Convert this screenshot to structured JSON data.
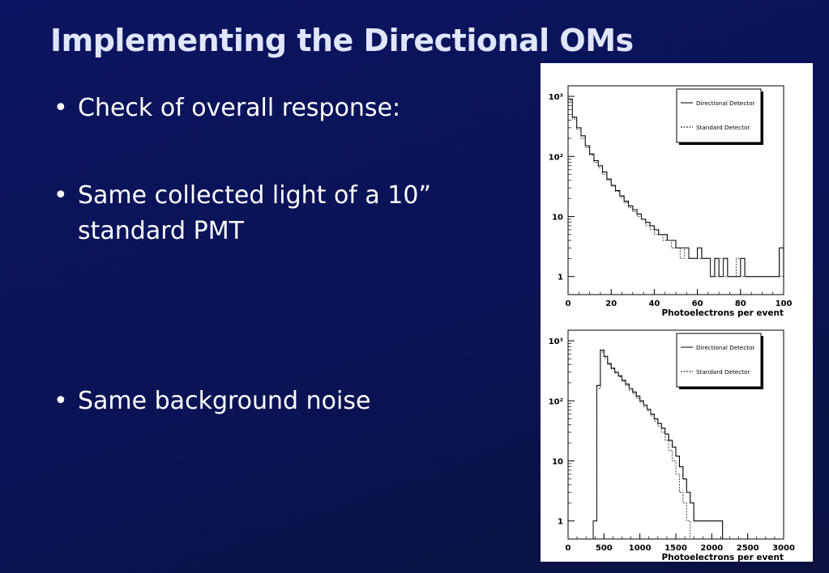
{
  "slide": {
    "title": "Implementing the Directional OMs",
    "bullets": [
      "Check of overall response:",
      "Same collected light of a 10” standard PMT",
      "Same background noise"
    ]
  },
  "chart_data": [
    {
      "type": "line",
      "xlabel": "Photoelectrons per event",
      "xlim": [
        0,
        100
      ],
      "ylim": [
        0.5,
        1500
      ],
      "yscale": "log",
      "x_ticks": [
        "0",
        "20",
        "40",
        "60",
        "80",
        "100"
      ],
      "y_ticks": [
        "1",
        "10",
        "10²",
        "10³"
      ],
      "legend": [
        "Directional Detector",
        "Standard Detector"
      ],
      "legend_position": "top-right",
      "series": [
        {
          "name": "Directional Detector",
          "style": "solid",
          "x": [
            0,
            2,
            4,
            6,
            8,
            10,
            12,
            14,
            16,
            18,
            20,
            22,
            24,
            26,
            28,
            30,
            32,
            34,
            36,
            38,
            40,
            42,
            44,
            46,
            48,
            50,
            52,
            54,
            56,
            58,
            60,
            62,
            64,
            66,
            68,
            70,
            72,
            74,
            76,
            78,
            80,
            82,
            84,
            86,
            88,
            90,
            92,
            94,
            96,
            98
          ],
          "y": [
            900,
            450,
            300,
            220,
            150,
            110,
            85,
            70,
            55,
            42,
            33,
            27,
            22,
            18,
            15,
            13,
            11,
            9,
            8,
            7,
            6,
            5,
            5,
            4,
            4,
            3,
            3,
            3,
            2,
            2,
            3,
            2,
            2,
            1,
            2,
            1,
            2,
            1,
            1,
            1,
            2,
            1,
            1,
            1,
            1,
            1,
            1,
            1,
            1,
            3
          ]
        },
        {
          "name": "Standard Detector",
          "style": "dashed",
          "x": [
            0,
            2,
            4,
            6,
            8,
            10,
            12,
            14,
            16,
            18,
            20,
            22,
            24,
            26,
            28,
            30,
            32,
            34,
            36,
            38,
            40,
            42,
            44,
            46,
            48,
            50,
            52,
            54,
            56,
            58,
            60,
            62,
            64,
            66,
            68,
            70,
            72,
            74,
            76,
            78,
            80,
            82,
            84,
            86,
            88,
            90,
            92,
            94,
            96,
            98
          ],
          "y": [
            850,
            420,
            280,
            200,
            140,
            105,
            80,
            65,
            50,
            40,
            32,
            26,
            21,
            17,
            14,
            12,
            10,
            9,
            7,
            6,
            5,
            5,
            4,
            4,
            3,
            3,
            2,
            3,
            2,
            2,
            2,
            2,
            2,
            1,
            1,
            2,
            1,
            1,
            1,
            2,
            1,
            1,
            1,
            1,
            1,
            1,
            1,
            1,
            1,
            1
          ]
        }
      ]
    },
    {
      "type": "line",
      "xlabel": "Photoelectrons per event",
      "xlim": [
        0,
        3000
      ],
      "ylim": [
        0.5,
        1500
      ],
      "yscale": "log",
      "x_ticks": [
        "0",
        "500",
        "1000",
        "1500",
        "2000",
        "2500",
        "3000"
      ],
      "y_ticks": [
        "1",
        "10",
        "10²",
        "10³"
      ],
      "legend": [
        "Directional Detector",
        "Standard Detector"
      ],
      "legend_position": "top-right",
      "series": [
        {
          "name": "Directional Detector",
          "style": "solid",
          "x": [
            350,
            400,
            450,
            500,
            550,
            600,
            650,
            700,
            750,
            800,
            850,
            900,
            950,
            1000,
            1050,
            1100,
            1150,
            1200,
            1250,
            1300,
            1350,
            1400,
            1450,
            1500,
            1550,
            1600,
            1650,
            1700,
            1750,
            1800,
            1850,
            1900,
            1950,
            2000,
            2050,
            2100
          ],
          "y": [
            1,
            180,
            700,
            550,
            420,
            350,
            300,
            260,
            220,
            190,
            160,
            140,
            120,
            100,
            85,
            72,
            60,
            50,
            42,
            35,
            28,
            22,
            17,
            12,
            8,
            5,
            3,
            2,
            1,
            1,
            1,
            1,
            1,
            1,
            1,
            1
          ]
        },
        {
          "name": "Standard Detector",
          "style": "dashed",
          "x": [
            350,
            400,
            450,
            500,
            550,
            600,
            650,
            700,
            750,
            800,
            850,
            900,
            950,
            1000,
            1050,
            1100,
            1150,
            1200,
            1250,
            1300,
            1350,
            1400,
            1450,
            1500,
            1550,
            1600,
            1650
          ],
          "y": [
            1,
            160,
            650,
            520,
            400,
            340,
            290,
            250,
            210,
            180,
            150,
            130,
            110,
            95,
            80,
            68,
            56,
            46,
            38,
            30,
            22,
            15,
            10,
            6,
            3,
            2,
            1
          ]
        }
      ]
    }
  ]
}
